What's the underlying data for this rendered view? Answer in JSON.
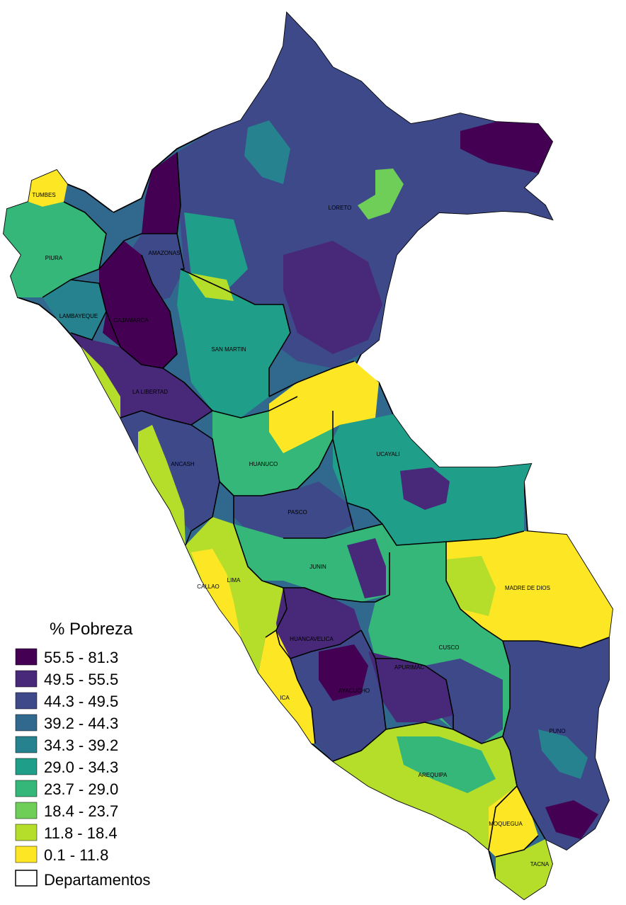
{
  "legend": {
    "title": "% Pobreza",
    "classes": [
      {
        "label": "55.5 - 81.3",
        "color": "#440154"
      },
      {
        "label": "49.5 - 55.5",
        "color": "#482878"
      },
      {
        "label": "44.3 - 49.5",
        "color": "#3e4989"
      },
      {
        "label": "39.2 - 44.3",
        "color": "#31688e"
      },
      {
        "label": "34.3 - 39.2",
        "color": "#26828e"
      },
      {
        "label": "29.0 - 34.3",
        "color": "#1f9e89"
      },
      {
        "label": "23.7 - 29.0",
        "color": "#35b779"
      },
      {
        "label": "18.4 - 23.7",
        "color": "#6ece58"
      },
      {
        "label": "11.8 - 18.4",
        "color": "#b5de2b"
      },
      {
        "label": "0.1 - 11.8",
        "color": "#fde725"
      }
    ],
    "boundary_label": "Departamentos"
  },
  "departments": [
    "TUMBES",
    "PIURA",
    "AMAZONAS",
    "LORETO",
    "LAMBAYEQUE",
    "CAJAMARCA",
    "SAN MARTIN",
    "LA LIBERTAD",
    "ANCASH",
    "HUANUCO",
    "UCAYALI",
    "PASCO",
    "JUNIN",
    "CALLAO",
    "LIMA",
    "MADRE DE DIOS",
    "HUANCAVELICA",
    "CUSCO",
    "AYACUCHO",
    "APURIMAC",
    "ICA",
    "PUNO",
    "AREQUIPA",
    "MOQUEGUA",
    "TACNA"
  ]
}
